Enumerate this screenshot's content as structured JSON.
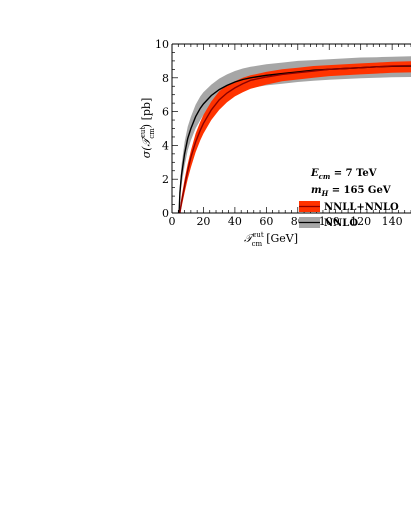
{
  "chart_data": {
    "type": "line",
    "title": "",
    "xlabel": "𝒯ᶜᵘᵗ_cm [GeV]",
    "xlabel_main": "𝒯",
    "xlabel_sup": "cut",
    "xlabel_sub": "cm",
    "xlabel_unit": "[GeV]",
    "ylabel_main": "σ(𝒯",
    "ylabel_sup": "cut",
    "ylabel_sub": "cm",
    "ylabel_unit": ") [pb]",
    "xlim": [
      0,
      152
    ],
    "ylim": [
      0,
      10
    ],
    "xticks": [
      "0",
      "20",
      "40",
      "60",
      "80",
      "100",
      "120",
      "140"
    ],
    "yticks": [
      "0",
      "2",
      "4",
      "6",
      "8",
      "10"
    ],
    "annotations": [
      "E_cm = 7 TeV",
      "m_H = 165 GeV"
    ],
    "annotation_lines": [
      {
        "sym": "E",
        "sub": "cm",
        "rest": " = 7 TeV"
      },
      {
        "sym": "m",
        "sub": "H",
        "rest": " = 165 GeV"
      }
    ],
    "legend_placement": "right",
    "series": [
      {
        "name": "NNLL+NNLO",
        "color": "#ff3300",
        "line_color": "#8b0000",
        "x": [
          5,
          6,
          8,
          10,
          12,
          15,
          18,
          20,
          25,
          30,
          35,
          40,
          45,
          50,
          60,
          70,
          80,
          90,
          100,
          110,
          120,
          130,
          140,
          152
        ],
        "central": [
          0.0,
          0.6,
          1.6,
          2.5,
          3.3,
          4.2,
          4.9,
          5.3,
          6.1,
          6.7,
          7.1,
          7.4,
          7.65,
          7.85,
          8.05,
          8.2,
          8.3,
          8.4,
          8.5,
          8.55,
          8.6,
          8.65,
          8.7,
          8.72
        ],
        "upper": [
          0.3,
          0.9,
          2.0,
          2.9,
          3.7,
          4.7,
          5.4,
          5.8,
          6.6,
          7.2,
          7.55,
          7.8,
          8.0,
          8.15,
          8.35,
          8.5,
          8.6,
          8.7,
          8.75,
          8.8,
          8.85,
          8.9,
          8.95,
          8.98
        ],
        "lower": [
          0.0,
          0.3,
          1.2,
          2.0,
          2.7,
          3.6,
          4.3,
          4.7,
          5.5,
          6.1,
          6.55,
          6.9,
          7.15,
          7.35,
          7.6,
          7.8,
          7.9,
          8.0,
          8.1,
          8.15,
          8.2,
          8.25,
          8.3,
          8.32
        ]
      },
      {
        "name": "NNLO",
        "color": "#a6a6a6",
        "line_color": "#000000",
        "x": [
          4.5,
          5,
          6,
          8,
          10,
          12,
          15,
          18,
          20,
          25,
          30,
          35,
          40,
          45,
          50,
          60,
          70,
          80,
          90,
          100,
          110,
          120,
          130,
          140,
          152
        ],
        "central": [
          0.0,
          1.2,
          2.2,
          3.5,
          4.4,
          5.0,
          5.7,
          6.2,
          6.45,
          6.95,
          7.3,
          7.55,
          7.75,
          7.9,
          8.0,
          8.15,
          8.25,
          8.35,
          8.45,
          8.5,
          8.55,
          8.6,
          8.65,
          8.68,
          8.7
        ],
        "upper": [
          0.5,
          1.6,
          2.8,
          4.2,
          5.1,
          5.7,
          6.4,
          6.9,
          7.15,
          7.6,
          7.95,
          8.2,
          8.4,
          8.55,
          8.65,
          8.8,
          8.9,
          9.0,
          9.05,
          9.1,
          9.15,
          9.2,
          9.22,
          9.25,
          9.27
        ],
        "lower": [
          0.0,
          0.7,
          1.6,
          2.8,
          3.7,
          4.3,
          5.0,
          5.5,
          5.8,
          6.3,
          6.7,
          6.95,
          7.15,
          7.3,
          7.4,
          7.55,
          7.65,
          7.75,
          7.82,
          7.88,
          7.93,
          7.97,
          8.0,
          8.03,
          8.05
        ]
      }
    ]
  }
}
